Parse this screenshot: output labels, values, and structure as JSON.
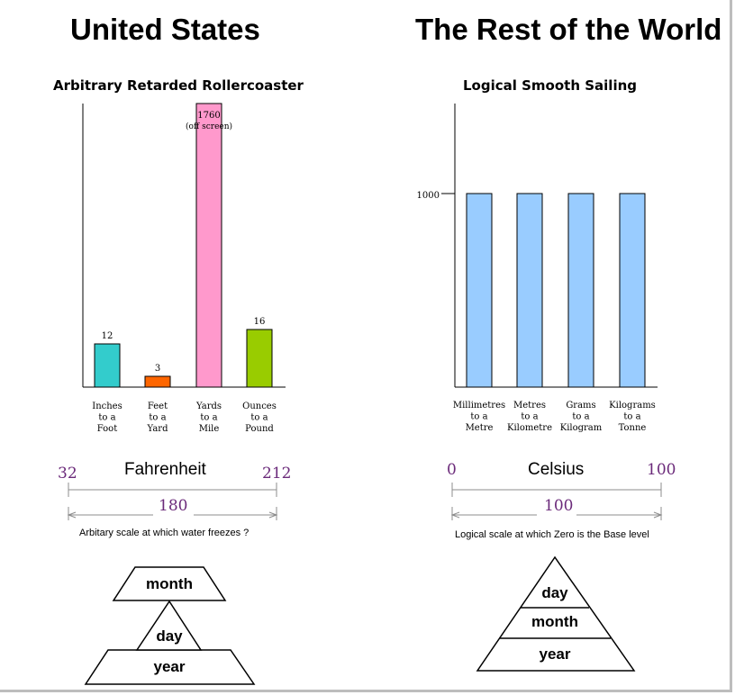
{
  "headings": {
    "left": "United States",
    "right": "The Rest of the World"
  },
  "chart_data": [
    {
      "type": "bar",
      "title": "Arbitrary Retarded Rollercoaster",
      "categories": [
        [
          "Inches",
          "to a",
          "Foot"
        ],
        [
          "Feet",
          "to a",
          "Yard"
        ],
        [
          "Yards",
          "to a",
          "Mile"
        ],
        [
          "Ounces",
          "to a",
          "Pound"
        ]
      ],
      "values": [
        12,
        3,
        1760,
        16
      ],
      "value_labels": [
        "12",
        "3",
        "1760",
        "16"
      ],
      "colors": [
        "#33cccc",
        "#ff6600",
        "#ff99cc",
        "#99cc00"
      ],
      "ylim": [
        0,
        20
      ],
      "offscreen_note": "(off screen)"
    },
    {
      "type": "bar",
      "title": "Logical Smooth Sailing",
      "categories": [
        [
          "Millimetres",
          "to a",
          "Metre"
        ],
        [
          "Metres",
          "to a",
          "Kilometre"
        ],
        [
          "Grams",
          "to a",
          "Kilogram"
        ],
        [
          "Kilograms",
          "to a",
          "Tonne"
        ]
      ],
      "values": [
        1000,
        1000,
        1000,
        1000
      ],
      "colors": [
        "#99ccff",
        "#99ccff",
        "#99ccff",
        "#99ccff"
      ],
      "y_tick_label": "1000",
      "ylim": [
        0,
        1500
      ]
    }
  ],
  "scales": {
    "left": {
      "title": "Fahrenheit",
      "low": "32",
      "high": "212",
      "span": "180",
      "note": "Arbitary scale at which water freezes ?"
    },
    "right": {
      "title": "Celsius",
      "low": "0",
      "high": "100",
      "span": "100",
      "note": "Logical scale at which Zero is the Base level"
    }
  },
  "dates": {
    "left": {
      "top": "month",
      "middle": "day",
      "bottom": "year"
    },
    "right": {
      "top": "day",
      "middle": "month",
      "bottom": "year"
    }
  }
}
